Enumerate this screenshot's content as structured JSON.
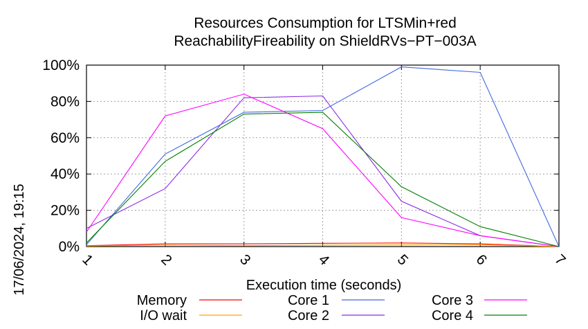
{
  "chart_data": {
    "type": "line",
    "title_lines": [
      "Resources Consumption for LTSMin+red",
      "ReachabilityFireability on ShieldRVs−PT−003A"
    ],
    "xlabel": "Execution time (seconds)",
    "ylabel": "",
    "x": [
      1,
      2,
      3,
      4,
      5,
      6,
      7
    ],
    "xlim": [
      1,
      7
    ],
    "ylim": [
      0,
      100
    ],
    "x_ticks": [
      "1",
      "2",
      "3",
      "4",
      "5",
      "6",
      "7"
    ],
    "y_ticks": [
      "0%",
      "20%",
      "40%",
      "60%",
      "80%",
      "100%"
    ],
    "y_tick_values": [
      0,
      20,
      40,
      60,
      80,
      100
    ],
    "grid": true,
    "legend_placement": "bottom",
    "series": [
      {
        "name": "Memory",
        "color": "#ff0000",
        "values": [
          0.5,
          1.5,
          1.5,
          1.8,
          2.0,
          1.5,
          0
        ]
      },
      {
        "name": "I/O wait",
        "color": "#ffa500",
        "values": [
          0.3,
          0.8,
          0.5,
          0.8,
          0.9,
          1.0,
          0
        ]
      },
      {
        "name": "Core 1",
        "color": "#4169e1",
        "values": [
          1,
          51,
          74,
          75,
          99,
          96,
          0
        ]
      },
      {
        "name": "Core 2",
        "color": "#8a2be2",
        "values": [
          10,
          32,
          82,
          83,
          25,
          6,
          0
        ]
      },
      {
        "name": "Core 3",
        "color": "#ff00ff",
        "values": [
          8,
          72,
          84,
          65,
          16,
          6,
          0
        ]
      },
      {
        "name": "Core 4",
        "color": "#008000",
        "values": [
          2,
          47,
          73,
          74,
          33,
          11,
          0
        ]
      }
    ]
  },
  "timestamp": "17/06/2024, 19:15"
}
